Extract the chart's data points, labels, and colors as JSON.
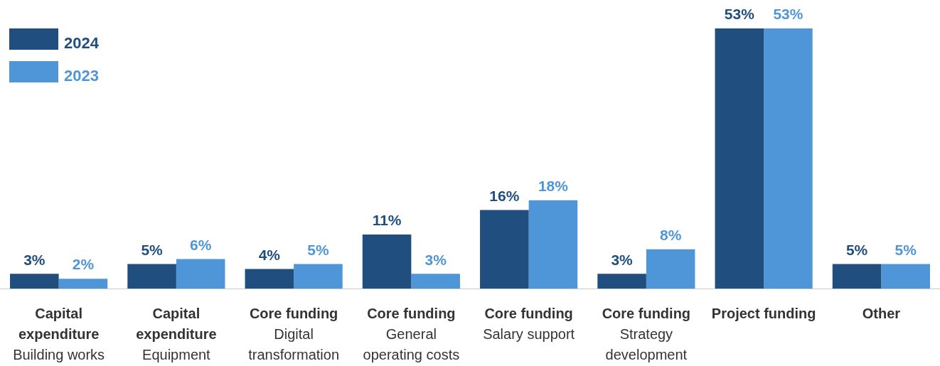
{
  "chart_data": {
    "type": "bar",
    "categories": [
      "Capital expenditure\nBuilding works",
      "Capital expenditure\nEquipment",
      "Core funding\nDigital transformation",
      "Core funding\nGeneral operating costs",
      "Core funding\nSalary support",
      "Core funding\nStrategy development",
      "Project funding",
      "Other"
    ],
    "series": [
      {
        "name": "2024",
        "color": "#1f4e7f",
        "values": [
          3,
          5,
          4,
          11,
          16,
          3,
          53,
          5
        ],
        "value_labels": [
          "3%",
          "5%",
          "4%",
          "11%",
          "16%",
          "3%",
          "53%",
          "5%"
        ]
      },
      {
        "name": "2023",
        "color": "#4f96d9",
        "values": [
          2,
          6,
          5,
          3,
          18,
          8,
          53,
          5
        ],
        "value_labels": [
          "2%",
          "6%",
          "5%",
          "3%",
          "18%",
          "8%",
          "53%",
          "5%"
        ]
      }
    ],
    "legend": "top left",
    "grid": false
  }
}
